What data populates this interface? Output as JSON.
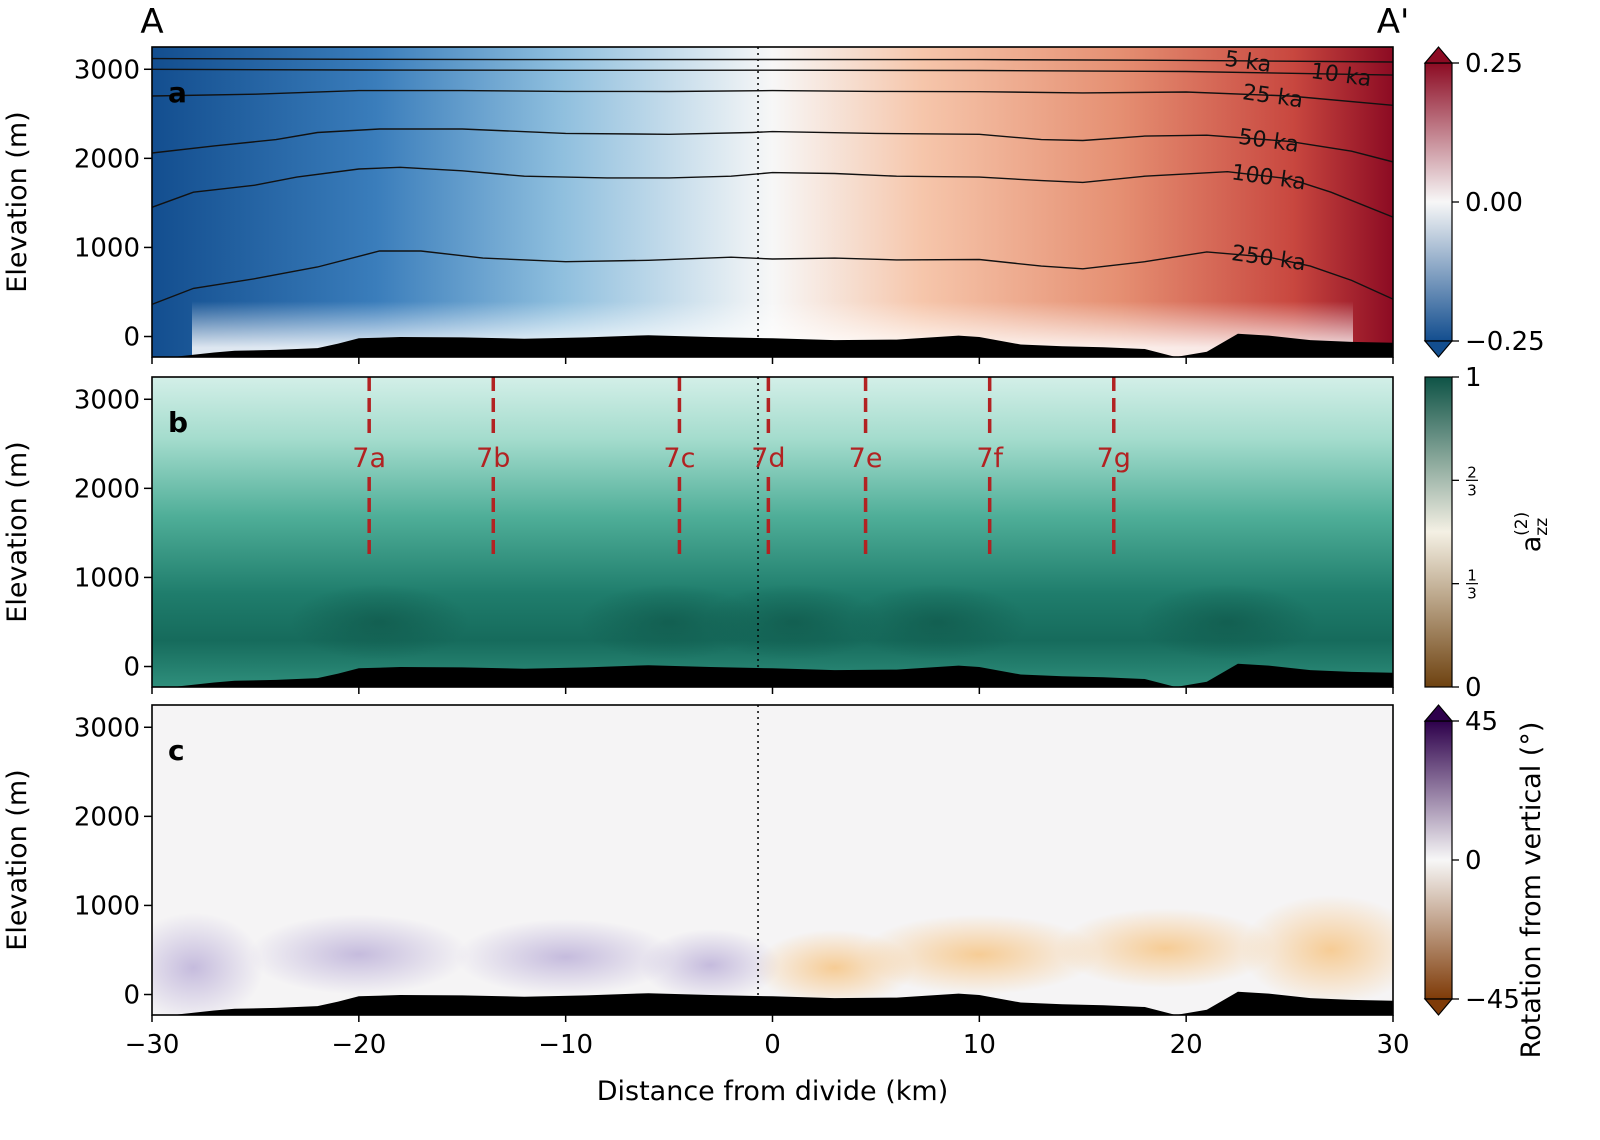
{
  "section": {
    "start_label": "A",
    "end_label": "A'"
  },
  "xlabel": "Distance from divide (km)",
  "ylabel": "Elevation (m)",
  "chart_data": [
    {
      "type": "heatmap",
      "panel_label": "a",
      "xlim": [
        -30,
        30
      ],
      "ylim": [
        -230,
        3250
      ],
      "x_ticks": [
        -30,
        -20,
        -10,
        0,
        10,
        20,
        30
      ],
      "y_ticks": [
        0,
        1000,
        2000,
        3000
      ],
      "divide_x_km": -0.7,
      "colormap": {
        "low": "#134e8f",
        "mid": "#f7f7f7",
        "high": "#8c0b23"
      },
      "colorbar": {
        "min": -0.25,
        "max": 0.25,
        "ticks": [
          "0.25",
          "0.00",
          "−0.25"
        ],
        "extend": "both",
        "label": ""
      },
      "isochrones": [
        {
          "label": "5 ka",
          "label_x_km": 23,
          "points": [
            [
              -30,
              3120
            ],
            [
              -20,
              3112
            ],
            [
              -10,
              3108
            ],
            [
              0,
              3110
            ],
            [
              10,
              3108
            ],
            [
              20,
              3100
            ],
            [
              30,
              3082
            ]
          ]
        },
        {
          "label": "10 ka",
          "label_x_km": 27.5,
          "points": [
            [
              -30,
              3000
            ],
            [
              -20,
              2992
            ],
            [
              -10,
              2988
            ],
            [
              0,
              2990
            ],
            [
              10,
              2986
            ],
            [
              20,
              2975
            ],
            [
              30,
              2935
            ]
          ]
        },
        {
          "label": "25 ka",
          "label_x_km": 24.2,
          "points": [
            [
              -30,
              2700
            ],
            [
              -25,
              2720
            ],
            [
              -20,
              2760
            ],
            [
              -15,
              2760
            ],
            [
              -10,
              2752
            ],
            [
              -5,
              2750
            ],
            [
              0,
              2760
            ],
            [
              5,
              2752
            ],
            [
              10,
              2748
            ],
            [
              15,
              2735
            ],
            [
              20,
              2745
            ],
            [
              25,
              2700
            ],
            [
              30,
              2595
            ]
          ]
        },
        {
          "label": "50 ka",
          "label_x_km": 24,
          "points": [
            [
              -30,
              2060
            ],
            [
              -27,
              2140
            ],
            [
              -24,
              2210
            ],
            [
              -22,
              2290
            ],
            [
              -19,
              2330
            ],
            [
              -15,
              2330
            ],
            [
              -10,
              2280
            ],
            [
              -5,
              2270
            ],
            [
              -1,
              2290
            ],
            [
              0,
              2300
            ],
            [
              5,
              2280
            ],
            [
              10,
              2270
            ],
            [
              13,
              2210
            ],
            [
              15,
              2200
            ],
            [
              18,
              2250
            ],
            [
              21,
              2260
            ],
            [
              25,
              2190
            ],
            [
              28,
              2080
            ],
            [
              30,
              1960
            ]
          ]
        },
        {
          "label": "100 ka",
          "label_x_km": 24,
          "points": [
            [
              -30,
              1450
            ],
            [
              -28,
              1620
            ],
            [
              -25,
              1700
            ],
            [
              -23,
              1790
            ],
            [
              -20,
              1880
            ],
            [
              -18,
              1900
            ],
            [
              -15,
              1860
            ],
            [
              -12,
              1800
            ],
            [
              -8,
              1780
            ],
            [
              -5,
              1780
            ],
            [
              -2,
              1800
            ],
            [
              0,
              1840
            ],
            [
              3,
              1830
            ],
            [
              6,
              1800
            ],
            [
              10,
              1790
            ],
            [
              13,
              1750
            ],
            [
              15,
              1730
            ],
            [
              18,
              1800
            ],
            [
              22,
              1850
            ],
            [
              25,
              1770
            ],
            [
              27,
              1620
            ],
            [
              30,
              1340
            ]
          ]
        },
        {
          "label": "250 ka",
          "label_x_km": 24,
          "points": [
            [
              -30,
              360
            ],
            [
              -28,
              540
            ],
            [
              -25,
              650
            ],
            [
              -22,
              780
            ],
            [
              -19,
              960
            ],
            [
              -17,
              960
            ],
            [
              -14,
              880
            ],
            [
              -10,
              840
            ],
            [
              -6,
              855
            ],
            [
              -2,
              890
            ],
            [
              0,
              870
            ],
            [
              3,
              880
            ],
            [
              6,
              860
            ],
            [
              10,
              865
            ],
            [
              13,
              790
            ],
            [
              15,
              760
            ],
            [
              18,
              840
            ],
            [
              21,
              950
            ],
            [
              24,
              890
            ],
            [
              26,
              790
            ],
            [
              28,
              630
            ],
            [
              30,
              420
            ]
          ]
        }
      ]
    },
    {
      "type": "heatmap",
      "panel_label": "b",
      "xlim": [
        -30,
        30
      ],
      "ylim": [
        -230,
        3250
      ],
      "x_ticks": [
        -30,
        -20,
        -10,
        0,
        10,
        20,
        30
      ],
      "y_ticks": [
        0,
        1000,
        2000,
        3000
      ],
      "divide_x_km": -0.7,
      "colormap": {
        "low": "#6e4210",
        "mid": "#f4f0e4",
        "high": "#0e5346"
      },
      "colorbar": {
        "min": 0,
        "max": 1,
        "ticks": [
          "1",
          "2/3",
          "1/3",
          "0"
        ],
        "extend": "neither",
        "label": "a_zz^(2)"
      },
      "profiles": [
        {
          "label": "7a",
          "x_km": -19.5
        },
        {
          "label": "7b",
          "x_km": -13.5
        },
        {
          "label": "7c",
          "x_km": -4.5
        },
        {
          "label": "7d",
          "x_km": -0.2
        },
        {
          "label": "7e",
          "x_km": 4.5
        },
        {
          "label": "7f",
          "x_km": 10.5
        },
        {
          "label": "7g",
          "x_km": 16.5
        }
      ]
    },
    {
      "type": "heatmap",
      "panel_label": "c",
      "xlim": [
        -30,
        30
      ],
      "ylim": [
        -230,
        3250
      ],
      "x_ticks": [
        -30,
        -20,
        -10,
        0,
        10,
        20,
        30
      ],
      "y_ticks": [
        0,
        1000,
        2000,
        3000
      ],
      "divide_x_km": -0.7,
      "colormap": {
        "low": "#7f3b08",
        "mid": "#f7f7f7",
        "high": "#2d004b"
      },
      "colorbar": {
        "min": -45,
        "max": 45,
        "ticks": [
          "45",
          "0",
          "−45"
        ],
        "extend": "both",
        "label": "Rotation from vertical (°)"
      }
    }
  ],
  "bed_profile": [
    [
      -30,
      -240
    ],
    [
      -29,
      -230
    ],
    [
      -28,
      -205
    ],
    [
      -27,
      -180
    ],
    [
      -26,
      -160
    ],
    [
      -24,
      -150
    ],
    [
      -22,
      -130
    ],
    [
      -21,
      -80
    ],
    [
      -20,
      -20
    ],
    [
      -18,
      -5
    ],
    [
      -15,
      -10
    ],
    [
      -12,
      -25
    ],
    [
      -9,
      -10
    ],
    [
      -6,
      15
    ],
    [
      -3,
      -5
    ],
    [
      0,
      -20
    ],
    [
      3,
      -40
    ],
    [
      6,
      -35
    ],
    [
      9,
      10
    ],
    [
      10,
      -5
    ],
    [
      12,
      -90
    ],
    [
      14,
      -110
    ],
    [
      16,
      -120
    ],
    [
      18,
      -140
    ],
    [
      19.5,
      -230
    ],
    [
      21,
      -170
    ],
    [
      22.5,
      30
    ],
    [
      24,
      10
    ],
    [
      26,
      -40
    ],
    [
      28,
      -60
    ],
    [
      30,
      -70
    ]
  ]
}
